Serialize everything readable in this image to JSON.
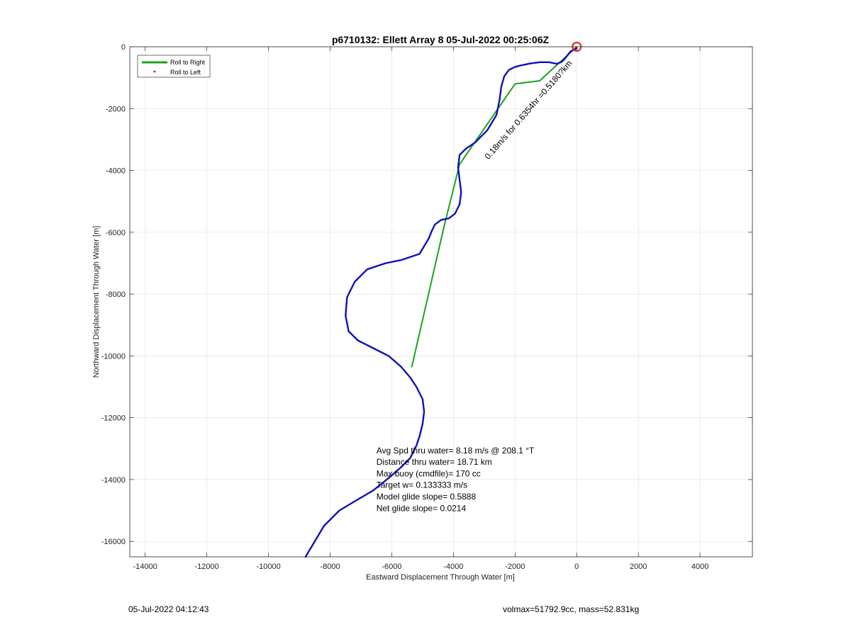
{
  "chart_data": {
    "type": "line",
    "title": "p6710132: Ellett Array 8 05-Jul-2022 00:25:06Z",
    "xlabel": "Eastward Displacement Through Water [m]",
    "ylabel": "Northward Displacement Through Water [m]",
    "xlim": [
      -14500,
      5700
    ],
    "ylim": [
      -16500,
      0
    ],
    "xticks": [
      -14000,
      -12000,
      -10000,
      -8000,
      -6000,
      -4000,
      -2000,
      0,
      2000,
      4000
    ],
    "yticks": [
      0,
      -2000,
      -4000,
      -6000,
      -8000,
      -10000,
      -12000,
      -14000,
      -16000
    ],
    "xtick_labels": [
      "-14000",
      "-12000",
      "-10000",
      "-8000",
      "-6000",
      "-4000",
      "-2000",
      "0",
      "2000",
      "4000"
    ],
    "ytick_labels": [
      "0",
      "-2000",
      "-4000",
      "-6000",
      "-8000",
      "-10000",
      "-12000",
      "-14000",
      "-16000"
    ],
    "grid": true,
    "legend_position": "top-left",
    "legend": [
      {
        "label": "Roll to Right",
        "color": "#1aa31a",
        "style": "line"
      },
      {
        "label": "Roll to Left",
        "color": "#e02020",
        "style": "point"
      }
    ],
    "series": [
      {
        "color": "#1010b8",
        "x": [
          0,
          -200,
          -400,
          -500,
          -650,
          -900,
          -1200,
          -1500,
          -1800,
          -2000,
          -2200,
          -2350,
          -2450,
          -2500,
          -2600,
          -2900,
          -3300,
          -3600,
          -3800,
          -3850,
          -3800,
          -3750,
          -3800,
          -3950,
          -4150,
          -4400,
          -4600,
          -4700,
          -4800,
          -5100,
          -5700,
          -6200,
          -6800,
          -7200,
          -7450,
          -7500,
          -7400,
          -7100,
          -6600,
          -6100,
          -5700,
          -5400,
          -5200,
          -5000,
          -4950,
          -5000,
          -5100,
          -5200,
          -5400,
          -5700,
          -6100,
          -6600,
          -7200,
          -7700,
          -8000,
          -8200,
          -8500,
          -8800
        ],
        "y": [
          -50,
          -150,
          -400,
          -500,
          -550,
          -500,
          -500,
          -540,
          -600,
          -650,
          -750,
          -950,
          -1300,
          -1700,
          -2200,
          -2700,
          -3100,
          -3300,
          -3500,
          -3900,
          -4300,
          -4700,
          -5100,
          -5400,
          -5550,
          -5600,
          -5750,
          -5950,
          -6200,
          -6700,
          -6900,
          -7000,
          -7200,
          -7600,
          -8100,
          -8700,
          -9200,
          -9500,
          -9750,
          -10000,
          -10350,
          -10700,
          -11000,
          -11400,
          -11800,
          -12200,
          -12600,
          -12900,
          -13300,
          -13600,
          -13950,
          -14350,
          -14700,
          -15000,
          -15300,
          -15500,
          -16000,
          -16500
        ]
      },
      {
        "name": "Roll to Right",
        "color": "#1aa31a",
        "x": [
          0,
          -1200,
          -2000,
          -3800,
          -4300,
          -5350
        ],
        "y": [
          0,
          -1100,
          -1200,
          -3800,
          -5800,
          -10350
        ]
      }
    ],
    "markers": [
      {
        "x": 0,
        "y": 0,
        "shape": "circle",
        "color": "#e02020"
      }
    ],
    "rotated_label": {
      "text": "0.18m/s for 0.6354hr =0.5180?km",
      "x": -1500,
      "y": -2100,
      "angle_deg": 49
    },
    "annotation": {
      "lines": [
        "Avg Spd thru water=  8.18 m/s @ 208.1 °T",
        "Distance thru water= 18.71 km",
        "Max buoy (cmdfile)= 170 cc",
        "Target w= 0.133333 m/s",
        "Model glide slope= 0.5888",
        "Net glide slope= 0.0214"
      ],
      "x": -6500,
      "y": -13150
    }
  },
  "footer": {
    "left": "05-Jul-2022 04:12:43",
    "right": "volmax=51792.9cc, mass=52.831kg"
  }
}
